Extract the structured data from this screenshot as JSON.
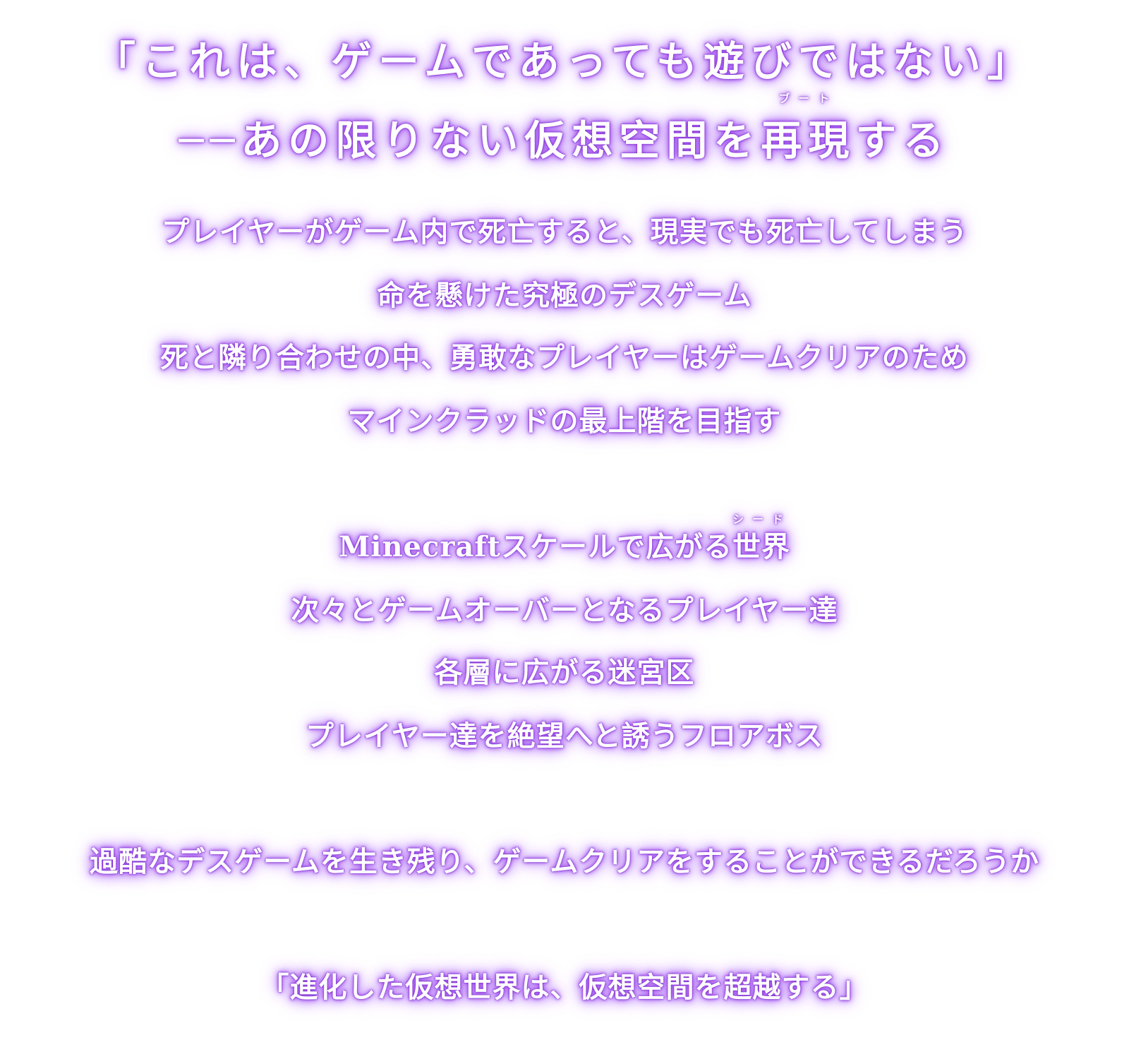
{
  "headline": {
    "line1": "「これは、ゲームであっても遊びではない」",
    "line2_prefix": "──あの限りない仮想空間を",
    "line2_ruby_base": "再現",
    "line2_ruby": "ブート",
    "line2_suffix": "する"
  },
  "section1": {
    "lines": [
      "プレイヤーがゲーム内で死亡すると、現実でも死亡してしまう",
      "命を懸けた究極のデスゲーム",
      "死と隣り合わせの中、勇敢なプレイヤーはゲームクリアのため",
      "マインクラッドの最上階を目指す"
    ]
  },
  "section2": {
    "line1_prefix": "Minecraftスケールで広がる",
    "line1_ruby_base": "世界",
    "line1_ruby": "シード",
    "lines": [
      "次々とゲームオーバーとなるプレイヤー達",
      "各層に広がる迷宮区",
      "プレイヤー達を絶望へと誘うフロアボス"
    ]
  },
  "section3": {
    "line": "過酷なデスゲームを生き残り、ゲームクリアをすることができるだろうか"
  },
  "closing": {
    "line": "「進化した仮想世界は、仮想空間を超越する」"
  },
  "colors": {
    "text": "#ffffff",
    "glow": "#a457f0",
    "background": "#ffffff"
  }
}
